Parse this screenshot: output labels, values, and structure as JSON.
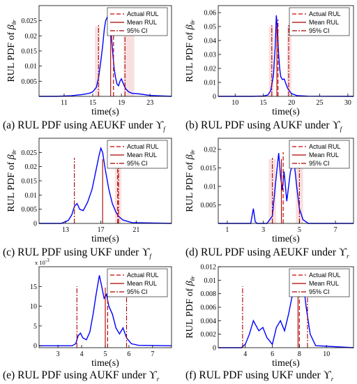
{
  "colors": {
    "pdf": "#0000ff",
    "actual": "#cc0000",
    "mean": "#aa0000",
    "ci": "#aa0000",
    "ci_band": "#f4cccc",
    "axis": "#000000"
  },
  "chart_data": [
    {
      "id": "a",
      "type": "line",
      "caption_prefix": "(a) RUL PDF using AEUKF under",
      "caption_symbol": "ϒ",
      "caption_sub": "f",
      "ylabel": "RUL PDF of",
      "ylabel_symbol": "β",
      "xlabel": "time(s)",
      "xlim": [
        7.5,
        26
      ],
      "ylim": [
        0,
        0.03
      ],
      "xticks": [
        11,
        15,
        19,
        23
      ],
      "xtick_labels": [
        "11",
        "15",
        "19",
        "23"
      ],
      "yticks": [
        0.005,
        0.01,
        0.015,
        0.02,
        0.025
      ],
      "ytick_labels": [
        "0.005",
        "0.01",
        "0.015",
        "0.02",
        "0.025"
      ],
      "sci_label": "",
      "legend": [
        "Actual RUL",
        "Mean RUL",
        "95% CI"
      ],
      "actual": 17.9,
      "mean": 17.5,
      "ci": [
        15.8,
        19.5
      ],
      "ci_bands": [
        [
          15.3,
          16.0
        ],
        [
          19.3,
          20.8
        ]
      ],
      "series": [
        {
          "x": [
            7.5,
            10,
            12,
            13.5,
            14.5,
            15,
            15.5,
            15.8,
            16.1,
            16.4,
            16.6,
            16.8,
            17.0,
            17.2,
            17.4,
            17.6,
            17.8,
            18.0,
            18.2,
            18.4,
            18.6,
            18.8,
            19.0,
            19.3,
            19.6,
            20.0,
            20.5,
            21.5,
            23,
            26
          ],
          "y": [
            0,
            0,
            0.0002,
            0.0006,
            0.001,
            0.0015,
            0.003,
            0.006,
            0.011,
            0.017,
            0.022,
            0.025,
            0.026,
            0.027,
            0.0255,
            0.02,
            0.014,
            0.009,
            0.006,
            0.004,
            0.0035,
            0.005,
            0.0058,
            0.004,
            0.0025,
            0.0015,
            0.001,
            0.0008,
            0.0003,
            0
          ]
        }
      ]
    },
    {
      "id": "b",
      "type": "line",
      "caption_prefix": "(b) RUL PDF using AUKF under",
      "caption_symbol": "ϒ",
      "caption_sub": "f",
      "ylabel": "RUL PDF of",
      "ylabel_symbol": "β",
      "xlabel": "time(s)",
      "xlim": [
        7,
        31
      ],
      "ylim": [
        0,
        0.065
      ],
      "xticks": [
        10,
        15,
        20,
        25,
        30
      ],
      "xtick_labels": [
        "10",
        "15",
        "20",
        "25",
        "30"
      ],
      "yticks": [
        0,
        0.01,
        0.02,
        0.03,
        0.04,
        0.05,
        0.06
      ],
      "ytick_labels": [
        "0",
        "0.01",
        "0.02",
        "0.03",
        "0.04",
        "0.05",
        "0.06"
      ],
      "sci_label": "",
      "legend": [
        "Actual RUL",
        "Mean RUL",
        "95% CI"
      ],
      "actual": 17.6,
      "mean": 17.4,
      "ci": [
        16.5,
        19.5
      ],
      "ci_bands": [
        [
          16.0,
          16.8
        ],
        [
          19.2,
          20.0
        ]
      ],
      "series": [
        {
          "x": [
            7,
            13,
            15,
            15.8,
            16.3,
            16.8,
            17.1,
            17.3,
            17.5,
            17.7,
            17.9,
            18.1,
            18.4,
            18.7,
            19.0,
            19.3,
            19.6,
            20.0,
            21,
            23,
            31
          ],
          "y": [
            0,
            0,
            0.0002,
            0.001,
            0.004,
            0.015,
            0.035,
            0.058,
            0.048,
            0.031,
            0.02,
            0.014,
            0.012,
            0.0125,
            0.009,
            0.006,
            0.004,
            0.002,
            0.0005,
            0.0001,
            0
          ]
        }
      ]
    },
    {
      "id": "c",
      "type": "line",
      "caption_prefix": "(c) RUL PDF using UKF under",
      "caption_symbol": "ϒ",
      "caption_sub": "f",
      "ylabel": "RUL PDF of",
      "ylabel_symbol": "β",
      "xlabel": "time(s)",
      "xlim": [
        10,
        25
      ],
      "ylim": [
        0,
        0.03
      ],
      "xticks": [
        13,
        17,
        21
      ],
      "xtick_labels": [
        "13",
        "17",
        "21"
      ],
      "yticks": [
        0,
        0.005,
        0.01,
        0.015,
        0.02,
        0.025
      ],
      "ytick_labels": [
        "0",
        "0.005",
        "0.01",
        "0.015",
        "0.02",
        "0.025"
      ],
      "sci_label": "",
      "legend": [
        "Actual RUL",
        "Mean RUL",
        "95% CI"
      ],
      "actual": 18.9,
      "mean": 17.2,
      "ci": [
        14.0,
        19.0
      ],
      "ci_bands": [
        [
          18.6,
          19.3
        ]
      ],
      "series": [
        {
          "x": [
            10,
            12.5,
            13.3,
            13.7,
            14.0,
            14.3,
            14.6,
            15.0,
            15.5,
            16.0,
            16.4,
            16.8,
            17.0,
            17.2,
            17.5,
            17.9,
            18.3,
            18.7,
            19.0,
            19.5,
            20.5,
            25
          ],
          "y": [
            0,
            0,
            0.001,
            0.003,
            0.006,
            0.007,
            0.005,
            0.0045,
            0.0075,
            0.012,
            0.018,
            0.024,
            0.0265,
            0.025,
            0.019,
            0.012,
            0.007,
            0.004,
            0.0025,
            0.0012,
            0.0003,
            0
          ]
        }
      ]
    },
    {
      "id": "d",
      "type": "line",
      "caption_prefix": "(d) RUL PDF using AEUKF under",
      "caption_symbol": "ϒ",
      "caption_sub": "r",
      "ylabel": "RUL PDF of",
      "ylabel_symbol": "β",
      "xlabel": "time(s)",
      "xlim": [
        0.5,
        8
      ],
      "ylim": [
        0,
        0.023
      ],
      "xticks": [
        1,
        3,
        5,
        7
      ],
      "xtick_labels": [
        "1",
        "3",
        "5",
        "7"
      ],
      "yticks": [
        0.005,
        0.01,
        0.015,
        0.02
      ],
      "ytick_labels": [
        "0.005",
        "0.01",
        "0.015",
        "0.02"
      ],
      "sci_label": "",
      "legend": [
        "Actual RUL",
        "Mean RUL",
        "95% CI"
      ],
      "actual": 4.1,
      "mean": 4.0,
      "ci": [
        3.5,
        5.0
      ],
      "ci_bands": [
        [
          3.3,
          3.7
        ],
        [
          4.8,
          5.2
        ]
      ],
      "series": [
        {
          "x": [
            0.5,
            2.3,
            2.45,
            2.55,
            2.65,
            3.2,
            3.5,
            3.7,
            3.85,
            3.95,
            4.05,
            4.15,
            4.3,
            4.5,
            4.7,
            4.85,
            5.0,
            5.2,
            5.5,
            8
          ],
          "y": [
            0,
            0,
            0.004,
            0.0005,
            0,
            0,
            0.002,
            0.012,
            0.019,
            0.013,
            0.009,
            0.014,
            0.006,
            0.014,
            0.017,
            0.01,
            0.004,
            0.001,
            0,
            0
          ]
        }
      ]
    },
    {
      "id": "e",
      "type": "line",
      "caption_prefix": "(e) RUL PDF using AUKF under",
      "caption_symbol": "ϒ",
      "caption_sub": "r",
      "ylabel": "",
      "ylabel_symbol": "",
      "xlabel": "time(s)",
      "xlim": [
        2.2,
        7.8
      ],
      "ylim": [
        -0.5,
        20
      ],
      "xticks": [
        3,
        4,
        5,
        6,
        7
      ],
      "xtick_labels": [
        "3",
        "4",
        "5",
        "6",
        "7"
      ],
      "yticks": [
        0,
        5,
        10,
        15
      ],
      "ytick_labels": [
        "0",
        "5",
        "10",
        "15"
      ],
      "sci_label": "x 10",
      "sci_exp": "-3",
      "legend": [
        "Actual RUL",
        "Mean RUL",
        "95% CI"
      ],
      "actual": 5.1,
      "mean": 5.0,
      "ci": [
        3.8,
        5.9
      ],
      "ci_bands": [],
      "series": [
        {
          "x": [
            2.2,
            3.6,
            3.75,
            3.85,
            3.95,
            4.05,
            4.2,
            4.35,
            4.5,
            4.6,
            4.75,
            4.85,
            4.95,
            5.05,
            5.15,
            5.3,
            5.45,
            5.6,
            5.75,
            5.9,
            6.1,
            6.4,
            7.8
          ],
          "y": [
            0,
            0,
            0.5,
            2.5,
            3.2,
            2.0,
            1.5,
            3.5,
            8.5,
            12.5,
            17.8,
            15.0,
            12.0,
            13.0,
            10.0,
            8.0,
            4.5,
            3.0,
            4.5,
            2.0,
            0.5,
            0.1,
            0
          ]
        }
      ]
    },
    {
      "id": "f",
      "type": "line",
      "caption_prefix": "(f) RUL PDF using UKF under",
      "caption_symbol": "ϒ",
      "caption_sub": "r",
      "ylabel": "RUL PDF of",
      "ylabel_symbol": "β",
      "xlabel": "time(s)",
      "xlim": [
        2,
        12
      ],
      "ylim": [
        0,
        0.012
      ],
      "xticks": [
        4,
        6,
        8,
        10
      ],
      "xtick_labels": [
        "4",
        "6",
        "8",
        "10"
      ],
      "yticks": [
        0,
        0.002,
        0.004,
        0.006,
        0.008,
        0.01,
        0.012
      ],
      "ytick_labels": [
        "0",
        "0.002",
        "0.004",
        "0.006",
        "0.008",
        "0.01",
        "0.012"
      ],
      "sci_label": "",
      "legend": [
        "Actual RUL",
        "Mean RUL",
        "95% CI"
      ],
      "actual": 8.0,
      "mean": 7.9,
      "ci": [
        3.8,
        8.6
      ],
      "ci_bands": [],
      "series": [
        {
          "x": [
            2,
            3.7,
            4.0,
            4.3,
            4.6,
            5.0,
            5.3,
            5.6,
            6.0,
            6.3,
            6.6,
            6.9,
            7.2,
            7.5,
            7.7,
            7.9,
            8.1,
            8.3,
            8.5,
            8.8,
            9.2,
            12
          ],
          "y": [
            0,
            0,
            0.0005,
            0.002,
            0.004,
            0.0025,
            0.003,
            0.0015,
            0.0005,
            0.003,
            0.004,
            0.0025,
            0.005,
            0.008,
            0.0105,
            0.011,
            0.009,
            0.0095,
            0.006,
            0.002,
            0.0003,
            0
          ]
        }
      ]
    }
  ]
}
